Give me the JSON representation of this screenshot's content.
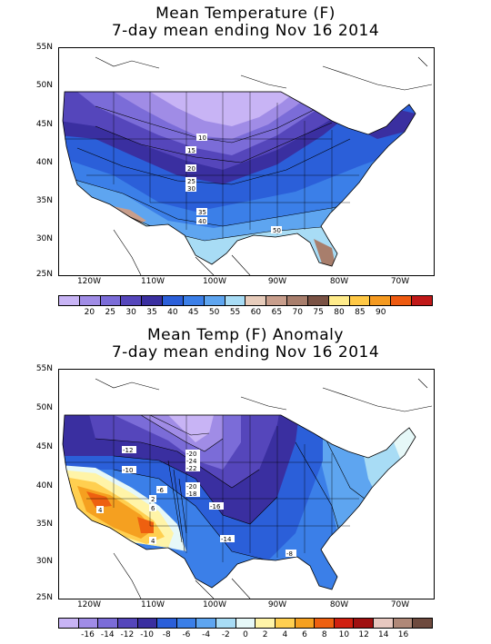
{
  "top_panel": {
    "title_line1": "Mean Temperature (F)",
    "title_line2": "7-day mean ending Nov 16 2014",
    "contour_labels": [
      "10",
      "15",
      "20",
      "25",
      "30",
      "35",
      "40",
      "50"
    ],
    "colorbar": {
      "colors": [
        "#c8b4f5",
        "#a08ce6",
        "#7b6cd8",
        "#5546bb",
        "#3a2fa0",
        "#2b5fd9",
        "#3b7fe8",
        "#5ea5f0",
        "#a8dcf5",
        "#e7ccbb",
        "#c89e8c",
        "#a87e6c",
        "#7a5244",
        "#ffeb8a",
        "#ffc845",
        "#f59a20",
        "#ee5a10",
        "#c01818"
      ],
      "labels": [
        "20",
        "25",
        "30",
        "35",
        "40",
        "45",
        "50",
        "55",
        "60",
        "65",
        "70",
        "75",
        "80",
        "85",
        "90"
      ]
    }
  },
  "bottom_panel": {
    "title_line1": "Mean Temp (F) Anomaly",
    "title_line2": "7-day mean ending Nov 16 2014",
    "contour_labels": [
      "-12",
      "-10",
      "-6",
      "-20",
      "-24",
      "-22",
      "-20",
      "-18",
      "-16",
      "-14",
      "-8",
      "2",
      "4",
      "4",
      "6"
    ],
    "colorbar": {
      "colors": [
        "#c8b4f5",
        "#a08ce6",
        "#7b6cd8",
        "#5546bb",
        "#3a2fa0",
        "#2b5fd9",
        "#3b7fe8",
        "#5ea5f0",
        "#a8dcf5",
        "#e6f8f8",
        "#fff4a8",
        "#ffcf50",
        "#f5a020",
        "#ee6010",
        "#d02010",
        "#a01010",
        "#e8c8c0",
        "#b08878",
        "#6e4a3e"
      ],
      "labels": [
        "-16",
        "-14",
        "-12",
        "-10",
        "-8",
        "-6",
        "-4",
        "-2",
        "0",
        "2",
        "4",
        "6",
        "8",
        "10",
        "12",
        "14",
        "16"
      ]
    }
  },
  "axes": {
    "lat_labels": [
      "55N",
      "50N",
      "45N",
      "40N",
      "35N",
      "30N",
      "25N"
    ],
    "lon_labels": [
      "120W",
      "110W",
      "100W",
      "90W",
      "80W",
      "70W"
    ]
  }
}
